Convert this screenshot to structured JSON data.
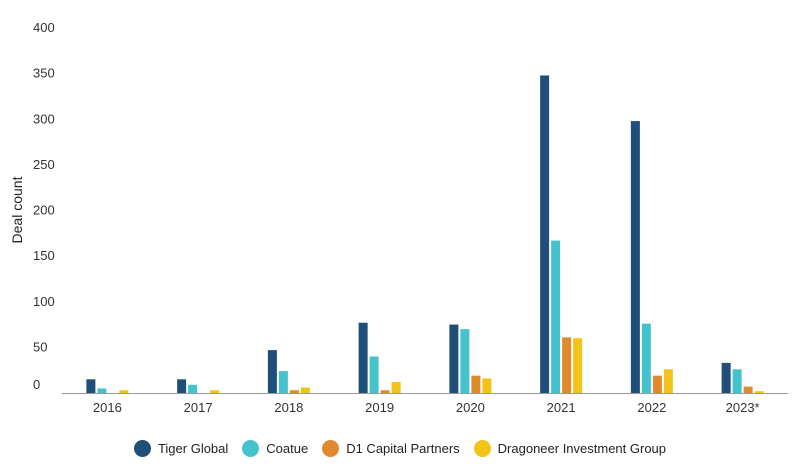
{
  "chart_data": {
    "type": "bar",
    "title": "",
    "xlabel": "",
    "ylabel": "Deal count",
    "ylim": [
      0,
      400
    ],
    "yticks": [
      0,
      50,
      100,
      150,
      200,
      250,
      300,
      350,
      400
    ],
    "grid": false,
    "legend_position": "bottom",
    "categories": [
      "2016",
      "2017",
      "2018",
      "2019",
      "2020",
      "2021",
      "2022",
      "2023*"
    ],
    "series": [
      {
        "name": "Tiger Global",
        "color": "#1f4e79",
        "values": [
          15,
          15,
          47,
          77,
          75,
          348,
          298,
          33
        ]
      },
      {
        "name": "Coatue",
        "color": "#45c3cc",
        "values": [
          5,
          9,
          24,
          40,
          70,
          167,
          76,
          26
        ]
      },
      {
        "name": "D1 Capital Partners",
        "color": "#e0892f",
        "values": [
          0,
          0,
          3,
          3,
          19,
          61,
          19,
          7
        ]
      },
      {
        "name": "Dragoneer Investment Group",
        "color": "#f3c318",
        "values": [
          3,
          3,
          6,
          12,
          16,
          60,
          26,
          2
        ]
      }
    ]
  }
}
